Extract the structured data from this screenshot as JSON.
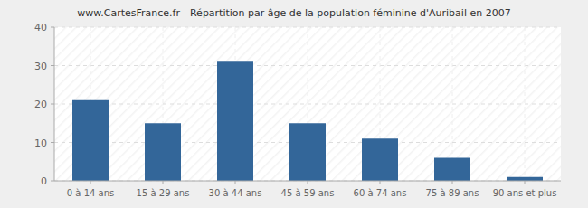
{
  "chart_data": {
    "type": "bar",
    "title": "www.CartesFrance.fr - Répartition par âge de la population féminine d'Auribail en 2007",
    "categories": [
      "0 à 14 ans",
      "15 à 29 ans",
      "30 à 44 ans",
      "45 à 59 ans",
      "60 à 74 ans",
      "75 à 89 ans",
      "90 ans et plus"
    ],
    "values": [
      21,
      15,
      31,
      15,
      11,
      6,
      1
    ],
    "color": "#336699",
    "ylim": [
      0,
      40
    ],
    "yticks": [
      0,
      10,
      20,
      30,
      40
    ],
    "grid": true
  }
}
